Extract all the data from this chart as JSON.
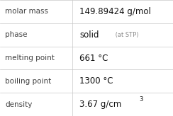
{
  "rows": [
    {
      "label": "molar mass",
      "value": "149.89424 g/mol",
      "type": "simple"
    },
    {
      "label": "phase",
      "value": "solid",
      "value_suffix": " (at STP)",
      "type": "phase"
    },
    {
      "label": "melting point",
      "value": "661 °C",
      "type": "simple"
    },
    {
      "label": "boiling point",
      "value": "1300 °C",
      "type": "simple"
    },
    {
      "label": "density",
      "value": "3.67 g/cm",
      "superscript": "3",
      "type": "super"
    }
  ],
  "col_split": 0.42,
  "background_color": "#ffffff",
  "line_color": "#c8c8c8",
  "label_color": "#404040",
  "value_color": "#111111",
  "suffix_color": "#888888",
  "label_fontsize": 7.5,
  "value_fontsize": 8.5,
  "suffix_fontsize": 6.0,
  "super_fontsize": 6.0
}
